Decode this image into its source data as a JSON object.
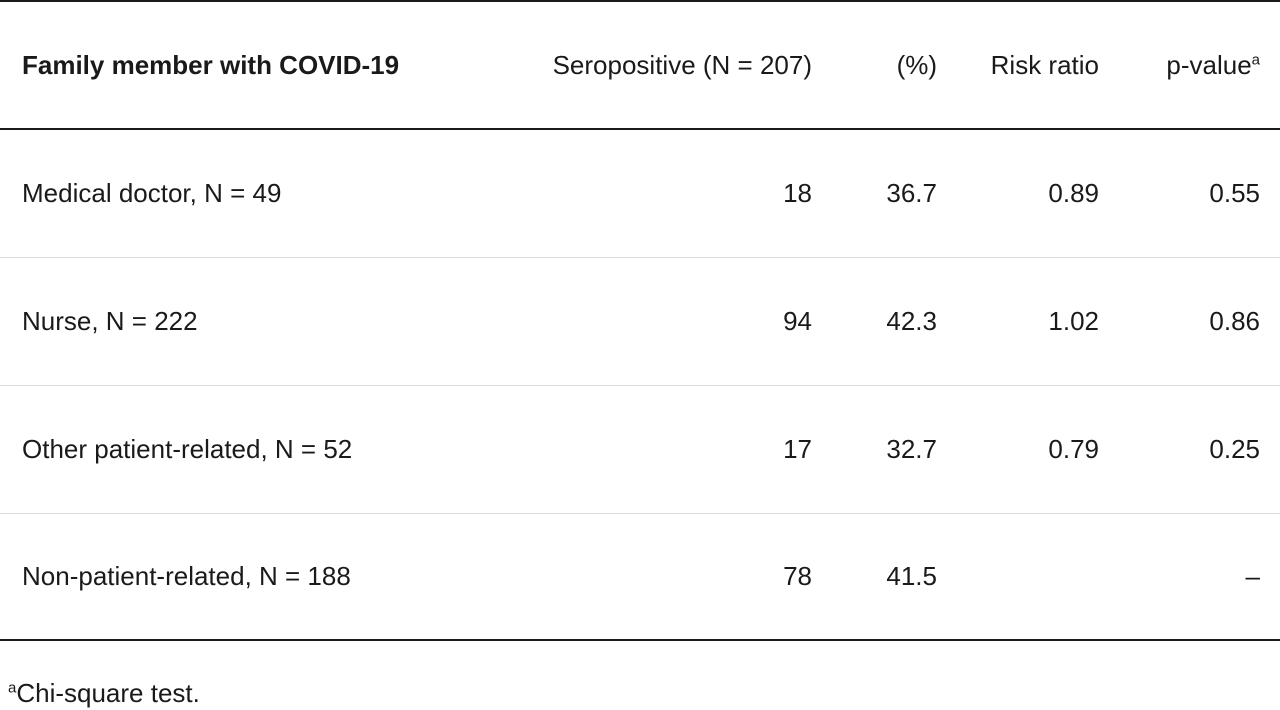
{
  "table": {
    "headers": {
      "family_member": "Family member with COVID-19",
      "seropositive": "Seropositive (N = 207)",
      "percent": "(%)",
      "risk_ratio": "Risk ratio",
      "p_value": "p-value",
      "p_value_marker": "a"
    },
    "rows": [
      {
        "label": "Medical doctor, N = 49",
        "seropositive": "18",
        "percent": "36.7",
        "risk_ratio": "0.89",
        "p_value": "0.55"
      },
      {
        "label": "Nurse, N = 222",
        "seropositive": "94",
        "percent": "42.3",
        "risk_ratio": "1.02",
        "p_value": "0.86"
      },
      {
        "label": "Other patient-related, N = 52",
        "seropositive": "17",
        "percent": "32.7",
        "risk_ratio": "0.79",
        "p_value": "0.25"
      },
      {
        "label": "Non-patient-related, N = 188",
        "seropositive": "78",
        "percent": "41.5",
        "risk_ratio": "",
        "p_value": "–"
      }
    ]
  },
  "footnote": {
    "marker": "a",
    "text": "Chi-square test."
  }
}
